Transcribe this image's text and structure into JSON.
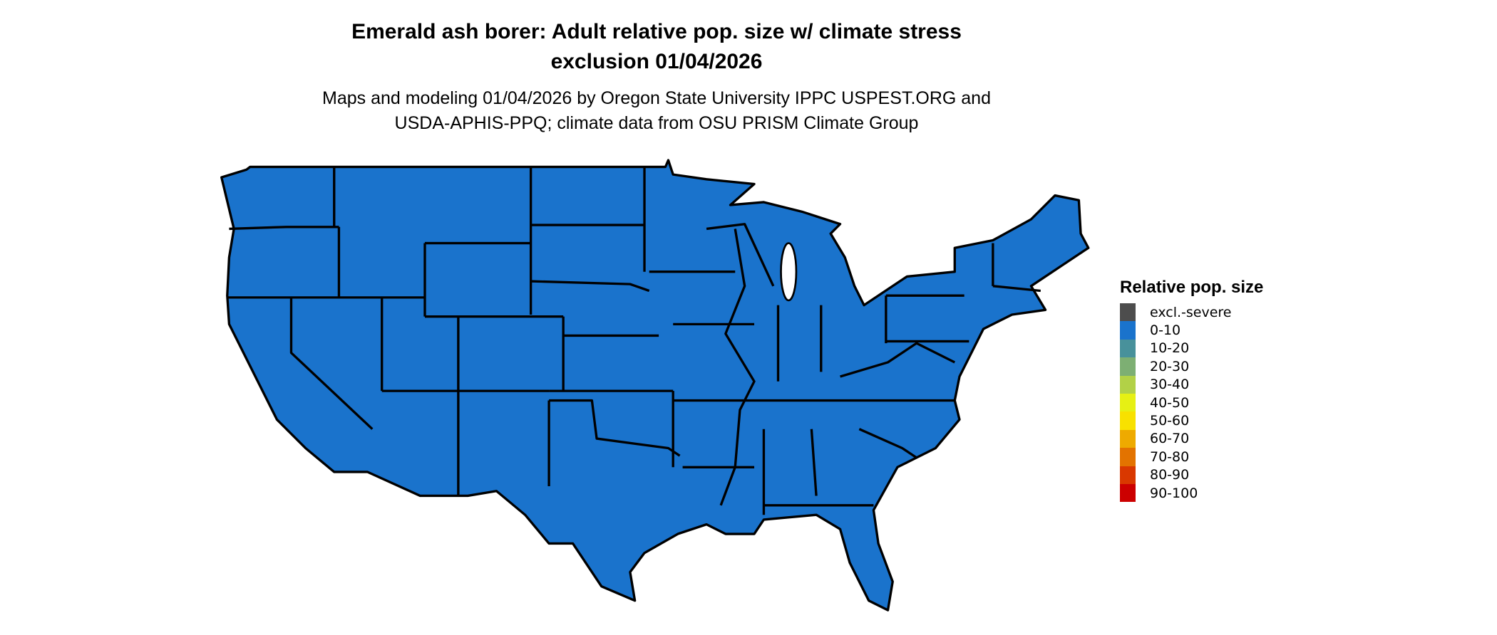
{
  "title": {
    "line1": "Emerald ash borer: Adult relative pop. size w/ climate stress",
    "line2": "exclusion 01/04/2026"
  },
  "subtitle": {
    "line1": "Maps and modeling 01/04/2026 by Oregon State University IPPC USPEST.ORG and",
    "line2": "USDA-APHIS-PPQ; climate data from OSU PRISM Climate Group"
  },
  "map": {
    "region": "Contiguous United States",
    "fill_class": "0-10",
    "fill_color": "#1a73cc",
    "border_color": "#000000"
  },
  "legend": {
    "title": "Relative pop. size",
    "items": [
      {
        "label": "excl.-severe",
        "color": "#4d4d4d"
      },
      {
        "label": "0-10",
        "color": "#1a73cc"
      },
      {
        "label": "10-20",
        "color": "#48919b"
      },
      {
        "label": "20-30",
        "color": "#7daf73"
      },
      {
        "label": "30-40",
        "color": "#b2d147"
      },
      {
        "label": "40-50",
        "color": "#e6f014"
      },
      {
        "label": "50-60",
        "color": "#f8e100"
      },
      {
        "label": "60-70",
        "color": "#eeaa00"
      },
      {
        "label": "70-80",
        "color": "#e37300"
      },
      {
        "label": "80-90",
        "color": "#d93800"
      },
      {
        "label": "90-100",
        "color": "#cc0000"
      }
    ]
  }
}
